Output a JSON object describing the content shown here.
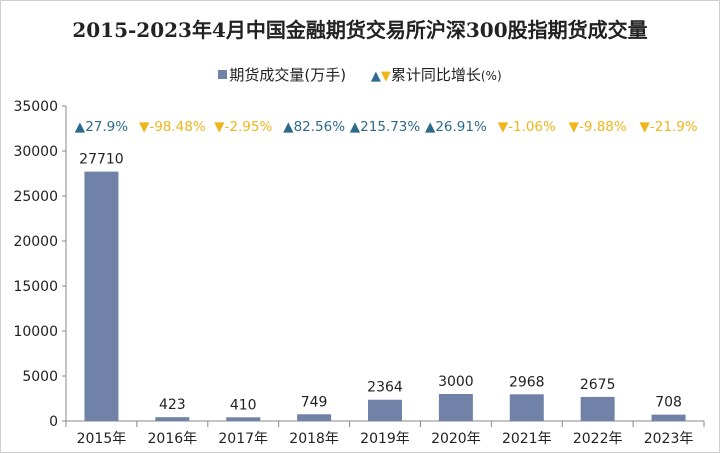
{
  "chart_data": {
    "type": "bar",
    "title": "2015-2023年4月中国金融期货交易所沪深300股指期货成交量",
    "categories": [
      "2015年",
      "2016年",
      "2017年",
      "2018年",
      "2019年",
      "2020年",
      "2021年",
      "2022年",
      "2023年"
    ],
    "series": [
      {
        "name": "期货成交量(万手)",
        "values": [
          27710,
          423,
          410,
          749,
          2364,
          3000,
          2968,
          2675,
          708
        ],
        "color": "#7082a7"
      },
      {
        "name": "累计同比增长(%)",
        "values": [
          27.9,
          -98.48,
          -2.95,
          82.56,
          215.73,
          26.91,
          -1.06,
          -9.88,
          -21.9
        ],
        "labels": [
          "27.9%",
          "-98.48%",
          "-2.95%",
          "82.56%",
          "215.73%",
          "26.91%",
          "-1.06%",
          "-9.88%",
          "-21.9%"
        ],
        "up_color": "#2e6a8e",
        "down_color": "#f0b41c"
      }
    ],
    "ylim": [
      0,
      35000
    ],
    "yticks": [
      0,
      5000,
      10000,
      15000,
      20000,
      25000,
      30000,
      35000
    ],
    "ytick_labels": [
      "0",
      "5000",
      "10000",
      "15000",
      "20000",
      "25000",
      "30000",
      "35000"
    ],
    "legend_position": "top-center",
    "grid": false
  },
  "legend": {
    "volume_label": "期货成交量(万手)",
    "growth_prefix": "累计同比增长",
    "growth_unit": "(%)",
    "up_symbol": "▲",
    "down_symbol": "▼"
  }
}
